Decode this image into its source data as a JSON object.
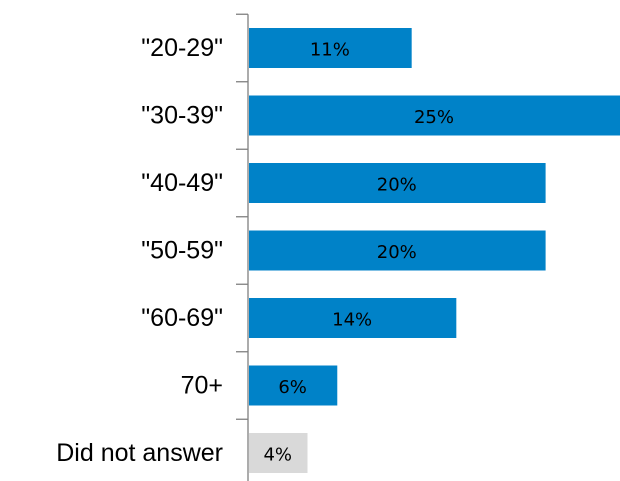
{
  "chart_data": {
    "type": "bar",
    "orientation": "horizontal",
    "categories": [
      "\"20-29\"",
      "\"30-39\"",
      "\"40-49\"",
      "\"50-59\"",
      "\"60-69\"",
      "70+",
      "Did not answer"
    ],
    "values": [
      11,
      25,
      20,
      20,
      14,
      6,
      4
    ],
    "value_labels": [
      "11%",
      "25%",
      "20%",
      "20%",
      "14%",
      "6%",
      "4%"
    ],
    "value_unit": "%",
    "xlim": [
      0,
      25
    ],
    "grid": false,
    "legend": "none",
    "colors": {
      "primary": "#0082C8",
      "no_answer": "#D9D9D9",
      "axis": "#808080"
    }
  }
}
